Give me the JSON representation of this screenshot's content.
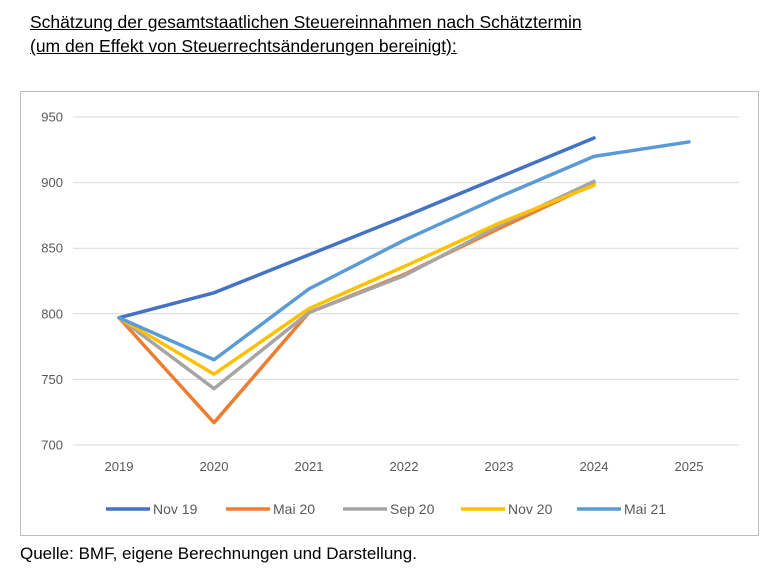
{
  "heading": {
    "line1": "Schätzung der gesamtstaatlichen Steuereinnahmen nach Schätztermin",
    "line2": "(um den Effekt von Steuerrechtsänderungen bereinigt):"
  },
  "source": "Quelle: BMF, eigene Berechnungen und Darstellung.",
  "chart_data": {
    "type": "line",
    "x": [
      "2019",
      "2020",
      "2021",
      "2022",
      "2023",
      "2024",
      "2025"
    ],
    "ylim": [
      700,
      950
    ],
    "yticks": [
      700,
      750,
      800,
      850,
      900,
      950
    ],
    "grid": true,
    "legend_position": "bottom",
    "series": [
      {
        "name": "Nov 19",
        "color": "#4472C4",
        "values": [
          797,
          816,
          845,
          874,
          904,
          934,
          null
        ]
      },
      {
        "name": "Mai 20",
        "color": "#ED7D31",
        "values": [
          797,
          717,
          801,
          830,
          865,
          899,
          null
        ]
      },
      {
        "name": "Sep 20",
        "color": "#A5A5A5",
        "values": [
          797,
          743,
          801,
          829,
          867,
          901,
          null
        ]
      },
      {
        "name": "Nov 20",
        "color": "#FFC000",
        "values": [
          797,
          754,
          804,
          836,
          869,
          898,
          null
        ]
      },
      {
        "name": "Mai 21",
        "color": "#5B9BD5",
        "values": [
          797,
          765,
          819,
          856,
          889,
          920,
          931
        ]
      }
    ]
  }
}
